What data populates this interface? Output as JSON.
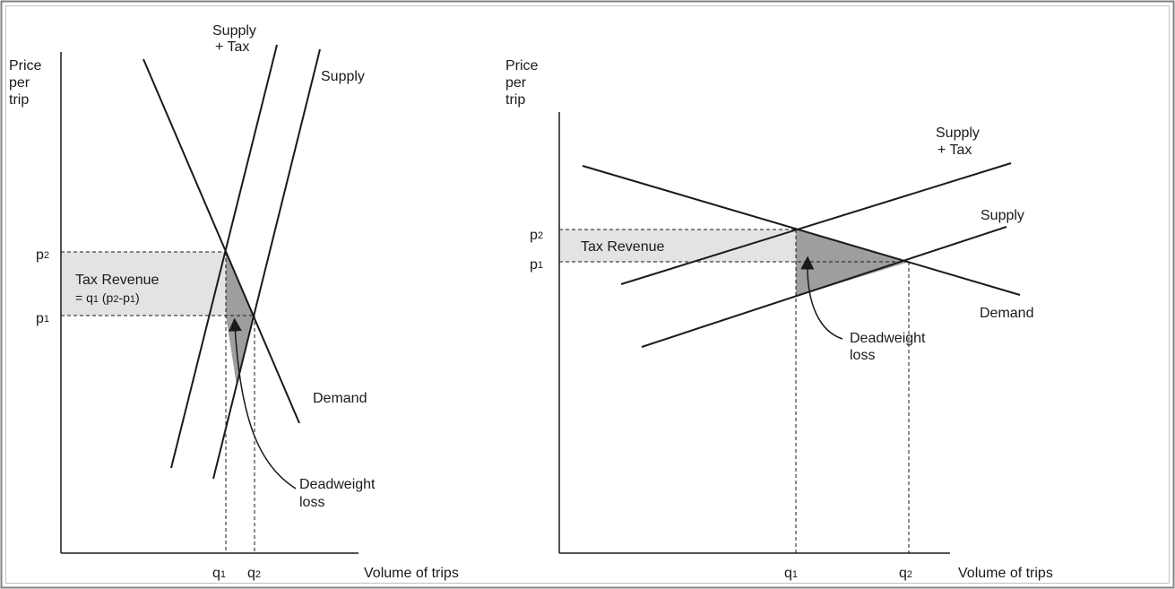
{
  "left_panel": {
    "y_axis_label": [
      "Price",
      "per",
      "trip"
    ],
    "x_axis_label": "Volume of trips",
    "supply_tax_label": [
      "Supply",
      "+ Tax"
    ],
    "supply_label": "Supply",
    "demand_label": "Demand",
    "p2_label": "p",
    "p2_sub": "2",
    "p1_label": "p",
    "p1_sub": "1",
    "q1_label": "q",
    "q1_sub": "1",
    "q2_label": "q",
    "q2_sub": "2",
    "tax_revenue_line1": "Tax Revenue",
    "tax_revenue_line2_a": "= q",
    "tax_revenue_line2_b": "1",
    "tax_revenue_line2_c": " (p",
    "tax_revenue_line2_d": "2",
    "tax_revenue_line2_e": "-p",
    "tax_revenue_line2_f": "1",
    "tax_revenue_line2_g": ")",
    "deadweight_label": [
      "Deadweight",
      "loss"
    ]
  },
  "right_panel": {
    "y_axis_label": [
      "Price",
      "per",
      "trip"
    ],
    "x_axis_label": "Volume of trips",
    "supply_tax_label": [
      "Supply",
      "+ Tax"
    ],
    "supply_label": "Supply",
    "demand_label": "Demand",
    "p2_label": "p",
    "p2_sub": "2",
    "p1_label": "p",
    "p1_sub": "1",
    "q1_label": "q",
    "q1_sub": "1",
    "q2_label": "q",
    "q2_sub": "2",
    "tax_revenue_label": "Tax Revenue",
    "deadweight_label": [
      "Deadweight",
      "loss"
    ]
  },
  "colors": {
    "line": "#1a1a1a",
    "tax_revenue_fill": "#e3e3e3",
    "deadweight_fill": "#9e9e9e",
    "border": "#808080"
  }
}
